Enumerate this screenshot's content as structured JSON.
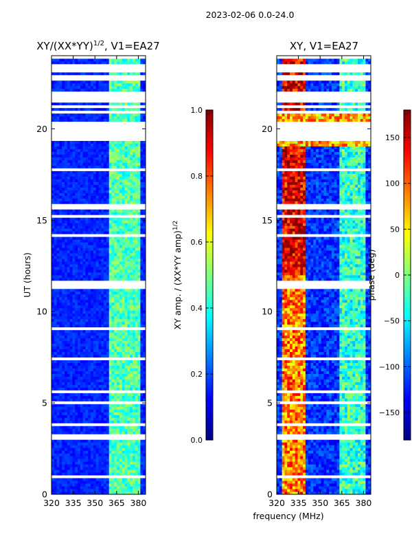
{
  "suptitle": "2023-02-06 0.0-24.0",
  "xlabel_shared": "frequency (MHz)",
  "chart_data": [
    {
      "type": "heatmap",
      "title_main": "XY/(XX*YY)",
      "title_sup": "1/2",
      "title_rest": ", V1=EA27",
      "ylabel": "UT (hours)",
      "x_range": [
        320,
        385
      ],
      "y_range": [
        0,
        24
      ],
      "x_ticks": [
        "320",
        "335",
        "350",
        "365",
        "380"
      ],
      "x_tick_values": [
        320,
        335,
        350,
        365,
        380
      ],
      "y_ticks": [
        "0",
        "5",
        "10",
        "15",
        "20"
      ],
      "y_tick_values": [
        0,
        5,
        10,
        15,
        20
      ],
      "colorbar": {
        "label_main": "XY amp. / (XX*YY amp)",
        "label_sup": "1/2",
        "range": [
          0.0,
          1.0
        ],
        "ticks": [
          "0.0",
          "0.2",
          "0.4",
          "0.6",
          "0.8",
          "1.0"
        ],
        "tick_values": [
          0.0,
          0.2,
          0.4,
          0.6,
          0.8,
          1.0
        ],
        "colormap": "jet"
      }
    },
    {
      "type": "heatmap",
      "title": "XY, V1=EA27",
      "x_range": [
        320,
        385
      ],
      "y_range": [
        0,
        24
      ],
      "x_ticks": [
        "320",
        "335",
        "350",
        "365",
        "380"
      ],
      "x_tick_values": [
        320,
        335,
        350,
        365,
        380
      ],
      "y_ticks": [
        "0",
        "5",
        "10",
        "15",
        "20"
      ],
      "y_tick_values": [
        0,
        5,
        10,
        15,
        20
      ],
      "colorbar": {
        "label": "phase (deg)",
        "range": [
          -180,
          180
        ],
        "ticks": [
          "−150",
          "−100",
          "−50",
          "0",
          "50",
          "100",
          "150"
        ],
        "tick_values": [
          -150,
          -100,
          -50,
          0,
          50,
          100,
          150
        ],
        "colormap": "jet"
      }
    }
  ]
}
